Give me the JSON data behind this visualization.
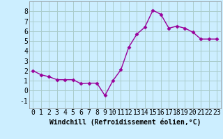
{
  "x": [
    0,
    1,
    2,
    3,
    4,
    5,
    6,
    7,
    8,
    9,
    10,
    11,
    12,
    13,
    14,
    15,
    16,
    17,
    18,
    19,
    20,
    21,
    22,
    23
  ],
  "y": [
    2.0,
    1.6,
    1.4,
    1.1,
    1.1,
    1.1,
    0.7,
    0.75,
    0.75,
    -0.5,
    1.0,
    2.1,
    4.4,
    5.7,
    6.4,
    8.1,
    7.7,
    6.3,
    6.5,
    6.3,
    5.9,
    5.2,
    5.2,
    5.2
  ],
  "line_color": "#990099",
  "marker": "D",
  "marker_size": 2.5,
  "line_width": 1.0,
  "background_color": "#cceeff",
  "grid_color": "#aacccc",
  "xlabel": "Windchill (Refroidissement éolien,°C)",
  "xlabel_fontsize": 7,
  "tick_fontsize": 7,
  "xlim": [
    -0.5,
    23.5
  ],
  "ylim": [
    -1.8,
    9.0
  ],
  "yticks": [
    -1,
    0,
    1,
    2,
    3,
    4,
    5,
    6,
    7,
    8
  ],
  "xticks": [
    0,
    1,
    2,
    3,
    4,
    5,
    6,
    7,
    8,
    9,
    10,
    11,
    12,
    13,
    14,
    15,
    16,
    17,
    18,
    19,
    20,
    21,
    22,
    23
  ]
}
